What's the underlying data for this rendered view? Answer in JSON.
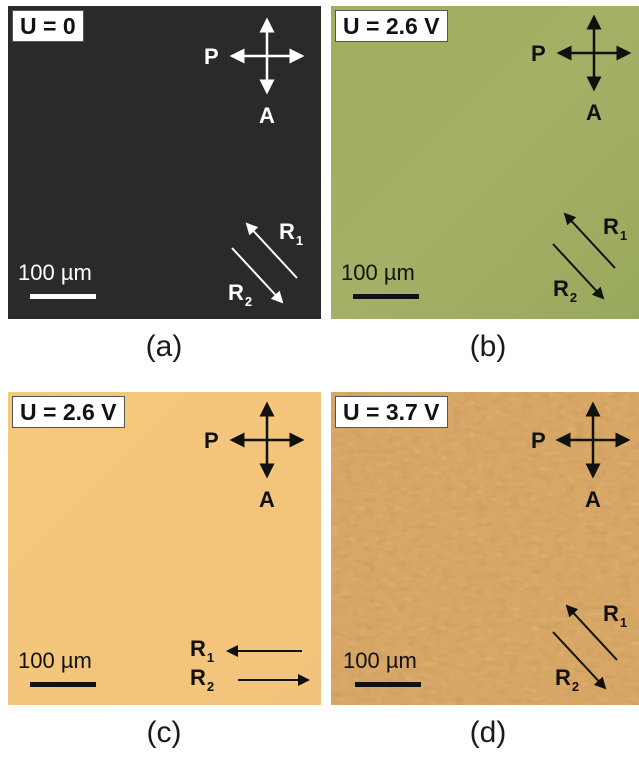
{
  "panels": [
    {
      "id": "a",
      "voltage": "U = 0",
      "polarizer": "P",
      "analyzer": "A",
      "r1": "R",
      "r1_sub": "1",
      "r2": "R",
      "r2_sub": "2",
      "scale": "100 µm",
      "caption": "(a)",
      "background": "#2c2a28",
      "arrow_color": "#ffffff"
    },
    {
      "id": "b",
      "voltage": "U = 2.6 V",
      "polarizer": "P",
      "analyzer": "A",
      "r1": "R",
      "r1_sub": "1",
      "r2": "R",
      "r2_sub": "2",
      "scale": "100 µm",
      "caption": "(b)",
      "background": "#a0ad62",
      "arrow_color": "#111111"
    },
    {
      "id": "c",
      "voltage": "U = 2.6 V",
      "polarizer": "P",
      "analyzer": "A",
      "r1": "R",
      "r1_sub": "1",
      "r2": "R",
      "r2_sub": "2",
      "scale": "100 µm",
      "caption": "(c)",
      "background": "#f3c77c",
      "arrow_color": "#111111"
    },
    {
      "id": "d",
      "voltage": "U = 3.7 V",
      "polarizer": "P",
      "analyzer": "A",
      "r1": "R",
      "r1_sub": "1",
      "r2": "R",
      "r2_sub": "2",
      "scale": "100 µm",
      "caption": "(d)",
      "background": "#d9a866",
      "arrow_color": "#111111"
    }
  ]
}
